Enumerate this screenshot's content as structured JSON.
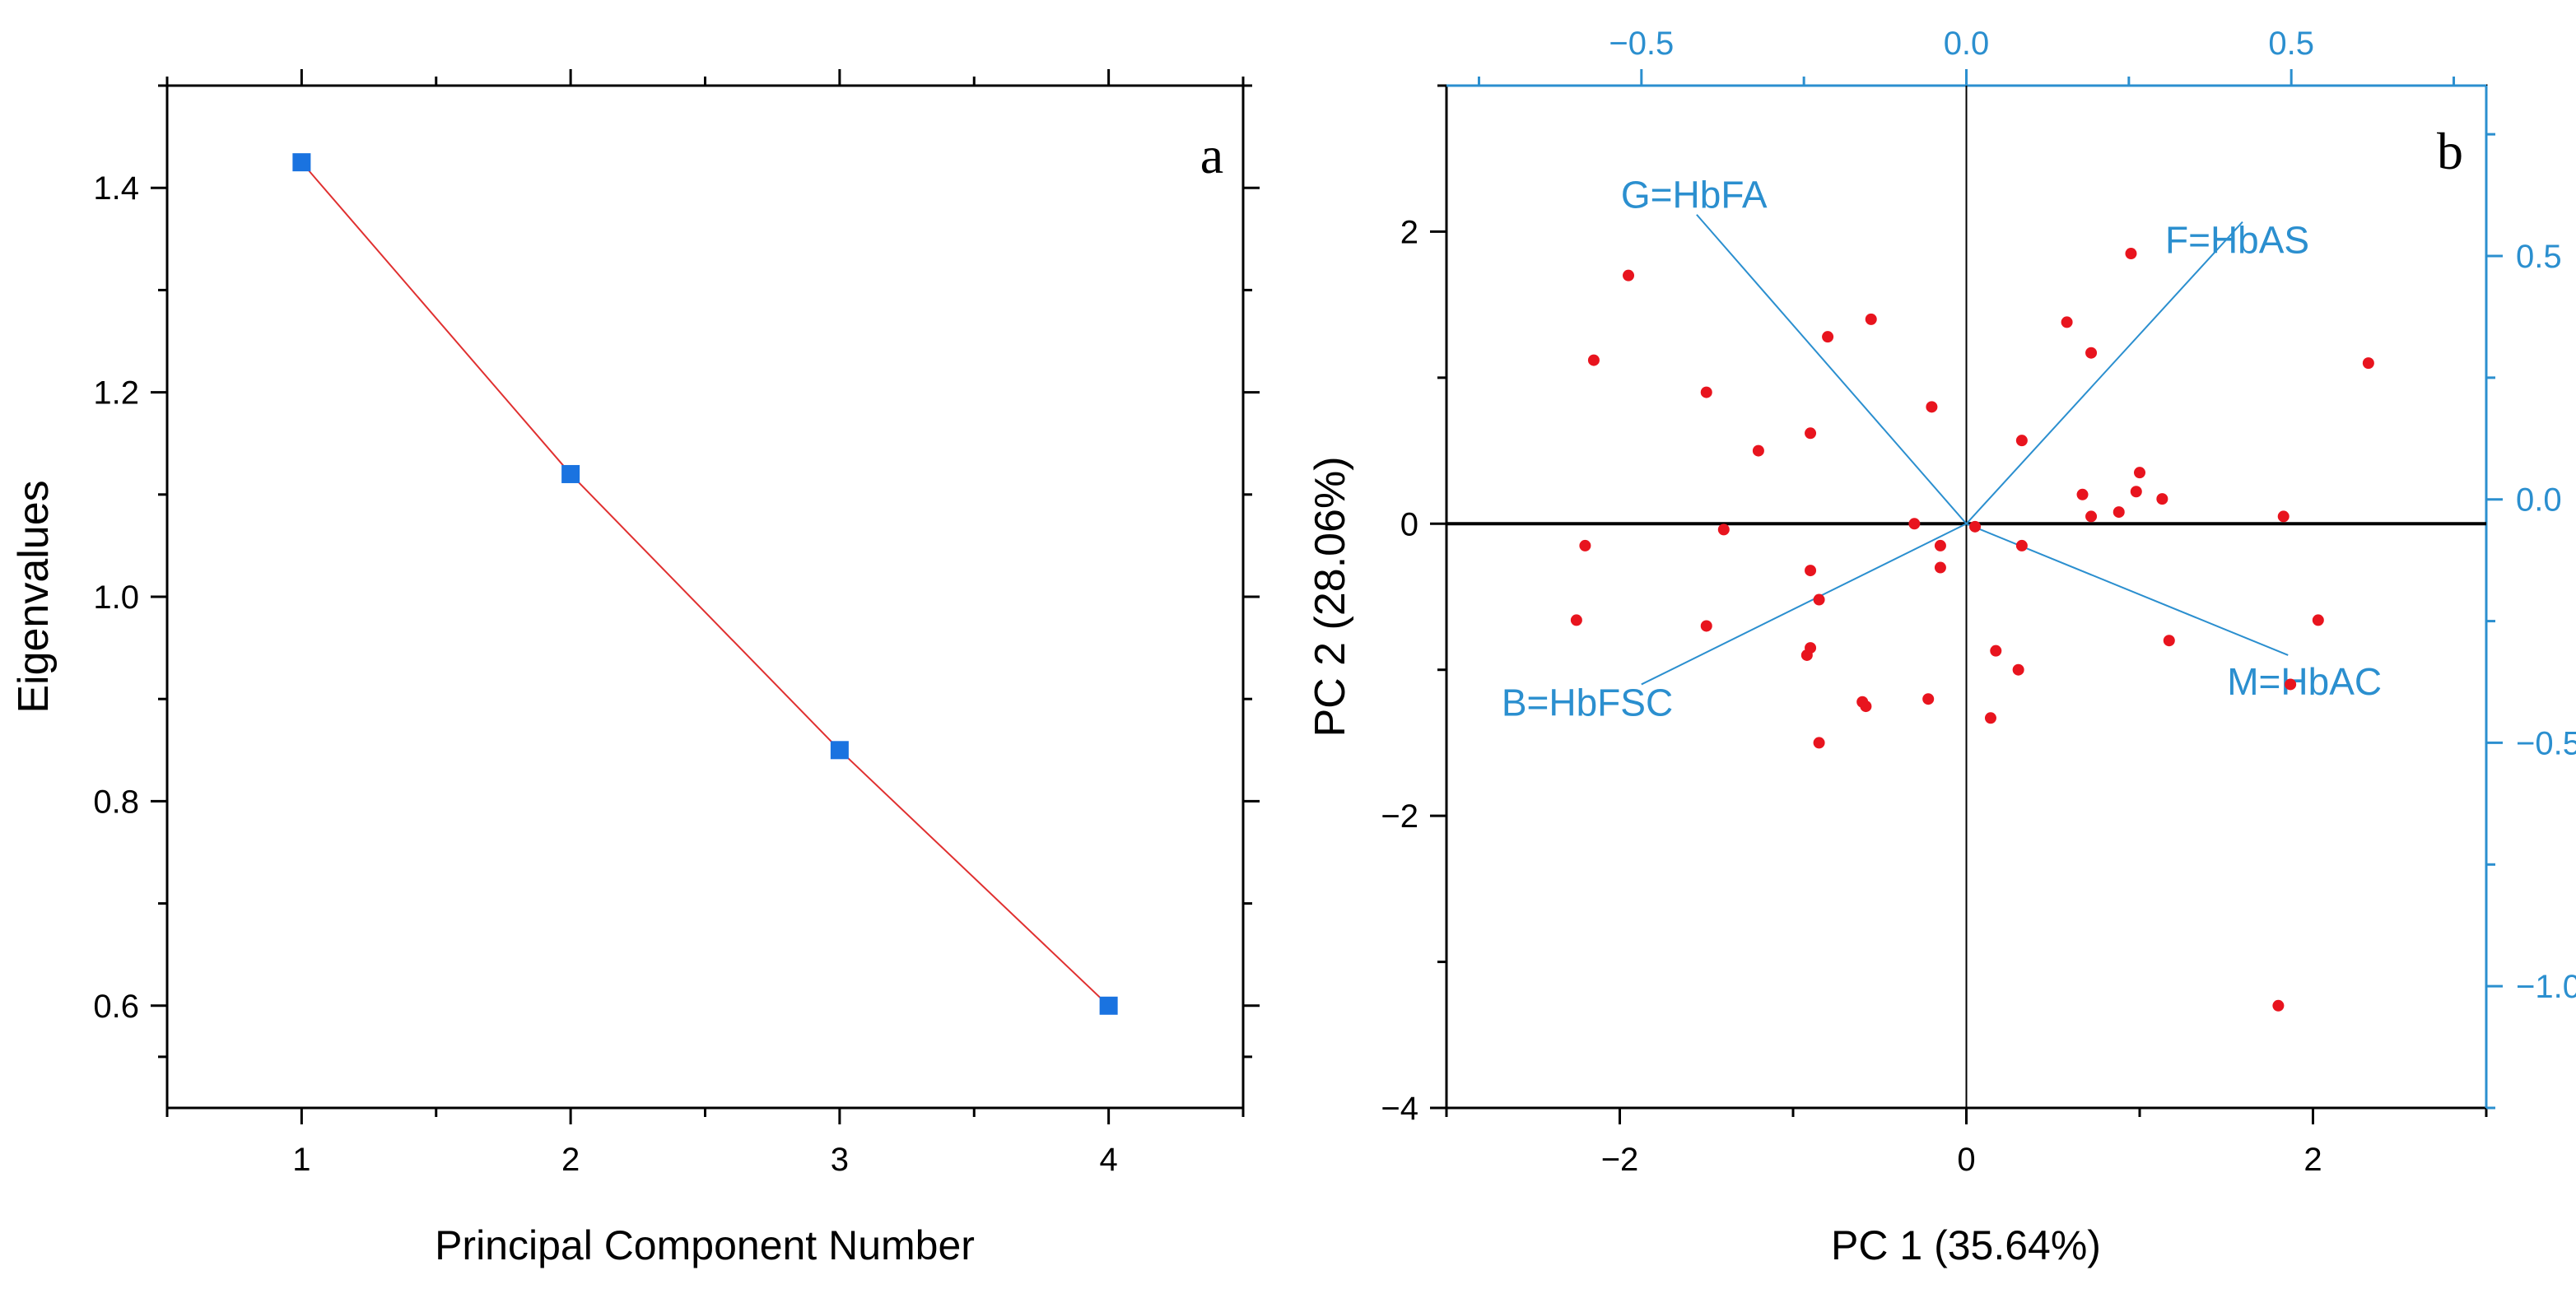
{
  "chart_data": [
    {
      "type": "line",
      "panel_label": "a",
      "title": "",
      "xlabel": "Principal Component Number",
      "ylabel": "Eigenvalues",
      "x": [
        1,
        2,
        3,
        4
      ],
      "y": [
        1.425,
        1.12,
        0.85,
        0.6
      ],
      "xlim": [
        0.5,
        4.5
      ],
      "ylim": [
        0.5,
        1.5
      ],
      "x_ticks": [
        1,
        2,
        3,
        4
      ],
      "x_tick_labels": [
        "1",
        "2",
        "3",
        "4"
      ],
      "y_ticks": [
        0.6,
        0.8,
        1.0,
        1.2,
        1.4
      ],
      "y_tick_labels": [
        "0.6",
        "0.8",
        "1.0",
        "1.2",
        "1.4"
      ],
      "marker": "square",
      "marker_color": "#1a73e0",
      "line_color": "#e03030",
      "grid": false
    },
    {
      "type": "scatter",
      "panel_label": "b",
      "title": "",
      "xlabel": "PC 1 (35.64%)",
      "ylabel": "PC 2 (28.06%)",
      "xlim": [
        -3,
        3
      ],
      "ylim": [
        -4,
        3
      ],
      "x_ticks": [
        -2,
        0,
        2
      ],
      "x_tick_labels": [
        "−2",
        "0",
        "2"
      ],
      "y_ticks": [
        -4,
        -2,
        0,
        2
      ],
      "y_tick_labels": [
        "−4",
        "−2",
        "0",
        "2"
      ],
      "top_axis_ticks": [
        -0.5,
        0.0,
        0.5
      ],
      "top_axis_tick_labels": [
        "−0.5",
        "0.0",
        "0.5"
      ],
      "right_axis_ticks": [
        -1.0,
        -0.5,
        0.0,
        0.5
      ],
      "right_axis_tick_labels": [
        "−1.0",
        "−0.5",
        "0.0",
        "0.5"
      ],
      "loading_axis_range_x": [
        -0.8,
        0.8
      ],
      "loading_axis_range_y": [
        -1.25,
        0.85
      ],
      "points_x": [
        -1.95,
        -2.15,
        -1.5,
        -1.2,
        -0.8,
        -0.9,
        -0.55,
        -0.2,
        -2.2,
        -1.4,
        -0.3,
        -0.15,
        -0.15,
        -0.9,
        -0.85,
        -2.25,
        -1.5,
        -0.9,
        -0.92,
        -0.6,
        -0.58,
        -0.22,
        -0.85,
        0.05,
        0.32,
        0.58,
        0.72,
        0.95,
        0.32,
        0.67,
        0.72,
        0.88,
        0.98,
        1.0,
        1.13,
        1.83,
        2.32,
        1.17,
        1.87,
        2.03,
        0.17,
        0.3,
        0.14,
        1.8
      ],
      "points_y": [
        1.7,
        1.12,
        0.9,
        0.5,
        1.28,
        0.62,
        1.4,
        0.8,
        -0.15,
        -0.04,
        0.0,
        -0.15,
        -0.3,
        -0.32,
        -0.52,
        -0.66,
        -0.7,
        -0.85,
        -0.9,
        -1.22,
        -1.25,
        -1.2,
        -1.5,
        -0.02,
        0.57,
        1.38,
        1.17,
        1.85,
        -0.15,
        0.2,
        0.05,
        0.08,
        0.22,
        0.35,
        0.17,
        0.05,
        1.1,
        -0.8,
        -1.1,
        -0.66,
        -0.87,
        -1.0,
        -1.33,
        -3.3
      ],
      "point_color": "#e8141e",
      "loadings": [
        {
          "label": "G=HbFA",
          "x": -0.415,
          "y": 0.585
        },
        {
          "label": "F=HbAS",
          "x": 0.425,
          "y": 0.57
        },
        {
          "label": "B=HbFSC",
          "x": -0.5,
          "y": -0.38
        },
        {
          "label": "M=HbAC",
          "x": 0.495,
          "y": -0.32
        }
      ],
      "loading_color": "#2b8fcf",
      "grid": false
    }
  ]
}
